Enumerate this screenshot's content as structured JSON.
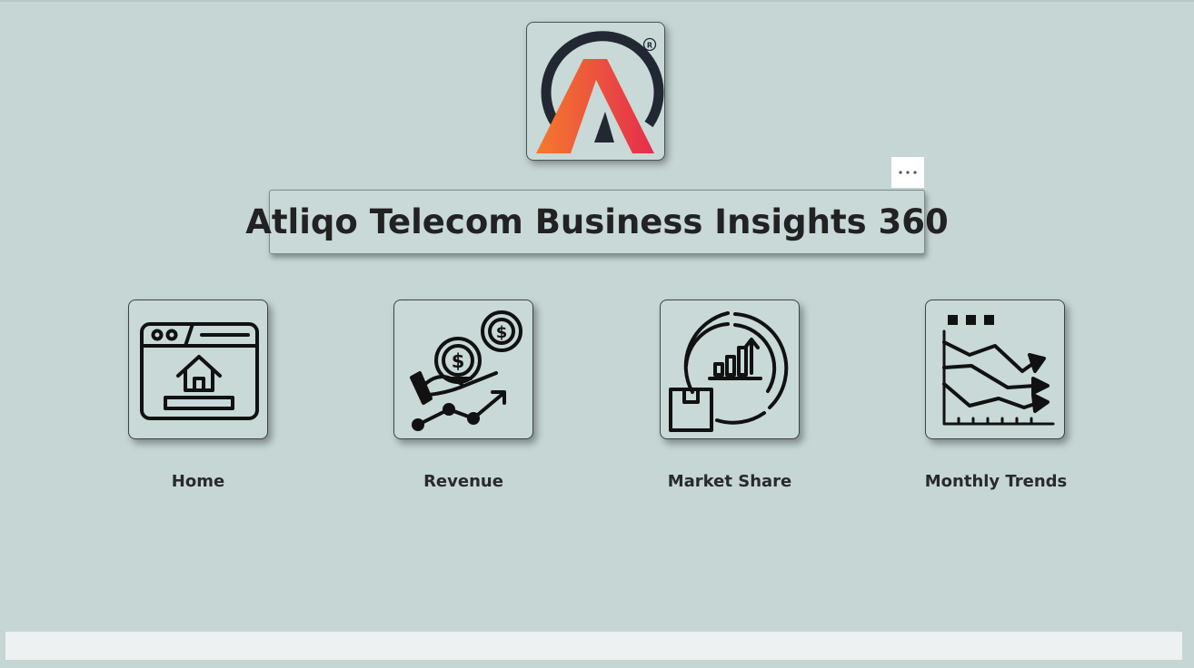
{
  "header": {
    "title": "Atliqo Telecom Business Insights 360",
    "more_options_label": "...",
    "logo_icon": "atliqo-logo-icon"
  },
  "navigation": [
    {
      "label": "Home",
      "icon": "home-webpage-icon"
    },
    {
      "label": "Revenue",
      "icon": "revenue-hand-coins-icon"
    },
    {
      "label": "Market Share",
      "icon": "market-share-chart-icon"
    },
    {
      "label": "Monthly Trends",
      "icon": "monthly-trends-line-chart-icon"
    }
  ],
  "colors": {
    "background": "#c5d6d4",
    "card_background": "#c8d9d7",
    "logo_gradient_start": "#f26a2e",
    "logo_gradient_end": "#e8314a",
    "logo_arc": "#222833",
    "text": "#222222"
  }
}
